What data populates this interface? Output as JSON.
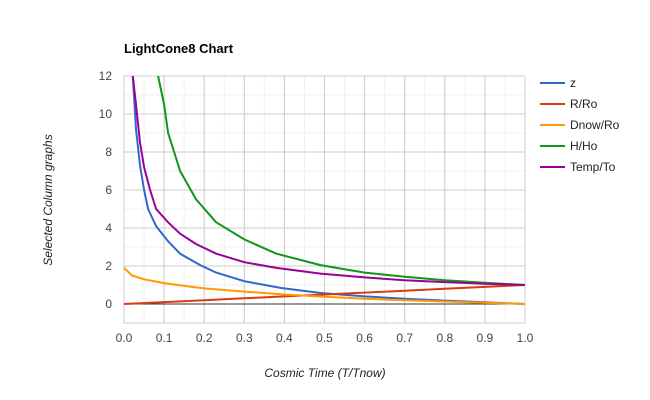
{
  "chart_data": {
    "type": "line",
    "title": "LightCone8 Chart",
    "xlabel": "Cosmic Time (T/Tnow)",
    "ylabel": "Selected Column graphs",
    "xlim": [
      0,
      1
    ],
    "ylim": [
      -1,
      12
    ],
    "x_ticks": [
      "0.0",
      "0.1",
      "0.2",
      "0.3",
      "0.4",
      "0.5",
      "0.6",
      "0.7",
      "0.8",
      "0.9",
      "1.0"
    ],
    "y_ticks": [
      "0",
      "2",
      "4",
      "6",
      "8",
      "10",
      "12"
    ],
    "grid": true,
    "legend_position": "right",
    "series": [
      {
        "name": "z",
        "color": "#3366cc",
        "points": [
          [
            0.022,
            12
          ],
          [
            0.03,
            9.2
          ],
          [
            0.04,
            7.3
          ],
          [
            0.05,
            6.0
          ],
          [
            0.06,
            5.0
          ],
          [
            0.08,
            4.1
          ],
          [
            0.11,
            3.3
          ],
          [
            0.14,
            2.65
          ],
          [
            0.19,
            2.05
          ],
          [
            0.23,
            1.65
          ],
          [
            0.3,
            1.2
          ],
          [
            0.39,
            0.85
          ],
          [
            0.49,
            0.58
          ],
          [
            0.6,
            0.4
          ],
          [
            0.7,
            0.28
          ],
          [
            0.8,
            0.18
          ],
          [
            0.9,
            0.09
          ],
          [
            1.0,
            0.0
          ]
        ]
      },
      {
        "name": "R/Ro",
        "color": "#dc3912",
        "points": [
          [
            0.0,
            0.0
          ],
          [
            0.1,
            0.1
          ],
          [
            0.2,
            0.2
          ],
          [
            0.3,
            0.3
          ],
          [
            0.4,
            0.4
          ],
          [
            0.5,
            0.5
          ],
          [
            0.6,
            0.6
          ],
          [
            0.7,
            0.7
          ],
          [
            0.8,
            0.8
          ],
          [
            0.9,
            0.9
          ],
          [
            1.0,
            1.0
          ]
        ]
      },
      {
        "name": "Dnow/Ro",
        "color": "#ff9900",
        "points": [
          [
            0.0,
            1.9
          ],
          [
            0.02,
            1.5
          ],
          [
            0.05,
            1.3
          ],
          [
            0.1,
            1.1
          ],
          [
            0.15,
            0.95
          ],
          [
            0.2,
            0.82
          ],
          [
            0.3,
            0.65
          ],
          [
            0.4,
            0.5
          ],
          [
            0.5,
            0.38
          ],
          [
            0.6,
            0.28
          ],
          [
            0.7,
            0.2
          ],
          [
            0.8,
            0.13
          ],
          [
            0.9,
            0.07
          ],
          [
            1.0,
            0.0
          ]
        ]
      },
      {
        "name": "H/Ho",
        "color": "#109618",
        "points": [
          [
            0.085,
            12
          ],
          [
            0.1,
            10.5
          ],
          [
            0.11,
            9.0
          ],
          [
            0.14,
            7.0
          ],
          [
            0.18,
            5.5
          ],
          [
            0.23,
            4.3
          ],
          [
            0.3,
            3.4
          ],
          [
            0.38,
            2.65
          ],
          [
            0.49,
            2.05
          ],
          [
            0.6,
            1.65
          ],
          [
            0.7,
            1.43
          ],
          [
            0.8,
            1.25
          ],
          [
            0.9,
            1.12
          ],
          [
            1.0,
            1.0
          ]
        ]
      },
      {
        "name": "Temp/To",
        "color": "#990099",
        "points": [
          [
            0.022,
            12
          ],
          [
            0.03,
            10.5
          ],
          [
            0.04,
            8.5
          ],
          [
            0.05,
            7.2
          ],
          [
            0.065,
            6.0
          ],
          [
            0.08,
            5.0
          ],
          [
            0.11,
            4.3
          ],
          [
            0.14,
            3.7
          ],
          [
            0.18,
            3.15
          ],
          [
            0.23,
            2.65
          ],
          [
            0.3,
            2.2
          ],
          [
            0.38,
            1.9
          ],
          [
            0.49,
            1.6
          ],
          [
            0.6,
            1.4
          ],
          [
            0.7,
            1.25
          ],
          [
            0.8,
            1.15
          ],
          [
            0.9,
            1.07
          ],
          [
            1.0,
            1.0
          ]
        ]
      }
    ]
  }
}
